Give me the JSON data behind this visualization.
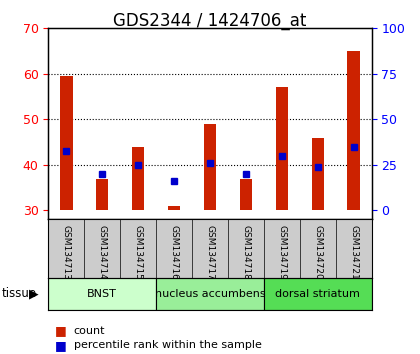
{
  "title": "GDS2344 / 1424706_at",
  "samples": [
    "GSM134713",
    "GSM134714",
    "GSM134715",
    "GSM134716",
    "GSM134717",
    "GSM134718",
    "GSM134719",
    "GSM134720",
    "GSM134721"
  ],
  "count_values": [
    59.5,
    37.0,
    44.0,
    31.0,
    49.0,
    37.0,
    57.0,
    46.0,
    65.0
  ],
  "percentile_values": [
    43.0,
    38.0,
    40.0,
    36.5,
    40.5,
    38.0,
    42.0,
    39.5,
    44.0
  ],
  "baseline": 30.0,
  "ylim_left": [
    28,
    70
  ],
  "ylim_right": [
    0,
    100
  ],
  "yticks_left": [
    30,
    40,
    50,
    60,
    70
  ],
  "yticks_right": [
    0,
    25,
    50,
    75,
    100
  ],
  "bar_color": "#cc2200",
  "dot_color": "#0000cc",
  "tissue_groups": [
    {
      "label": "BNST",
      "start": 0,
      "end": 3,
      "color": "#ccffcc"
    },
    {
      "label": "nucleus accumbens",
      "start": 3,
      "end": 6,
      "color": "#99ee99"
    },
    {
      "label": "dorsal striatum",
      "start": 6,
      "end": 9,
      "color": "#55dd55"
    }
  ],
  "tissue_label": "tissue",
  "legend_count": "count",
  "legend_percentile": "percentile rank within the sample",
  "background_color": "#ffffff",
  "plot_bg_color": "#ffffff",
  "title_fontsize": 12,
  "sample_bg_color": "#cccccc"
}
